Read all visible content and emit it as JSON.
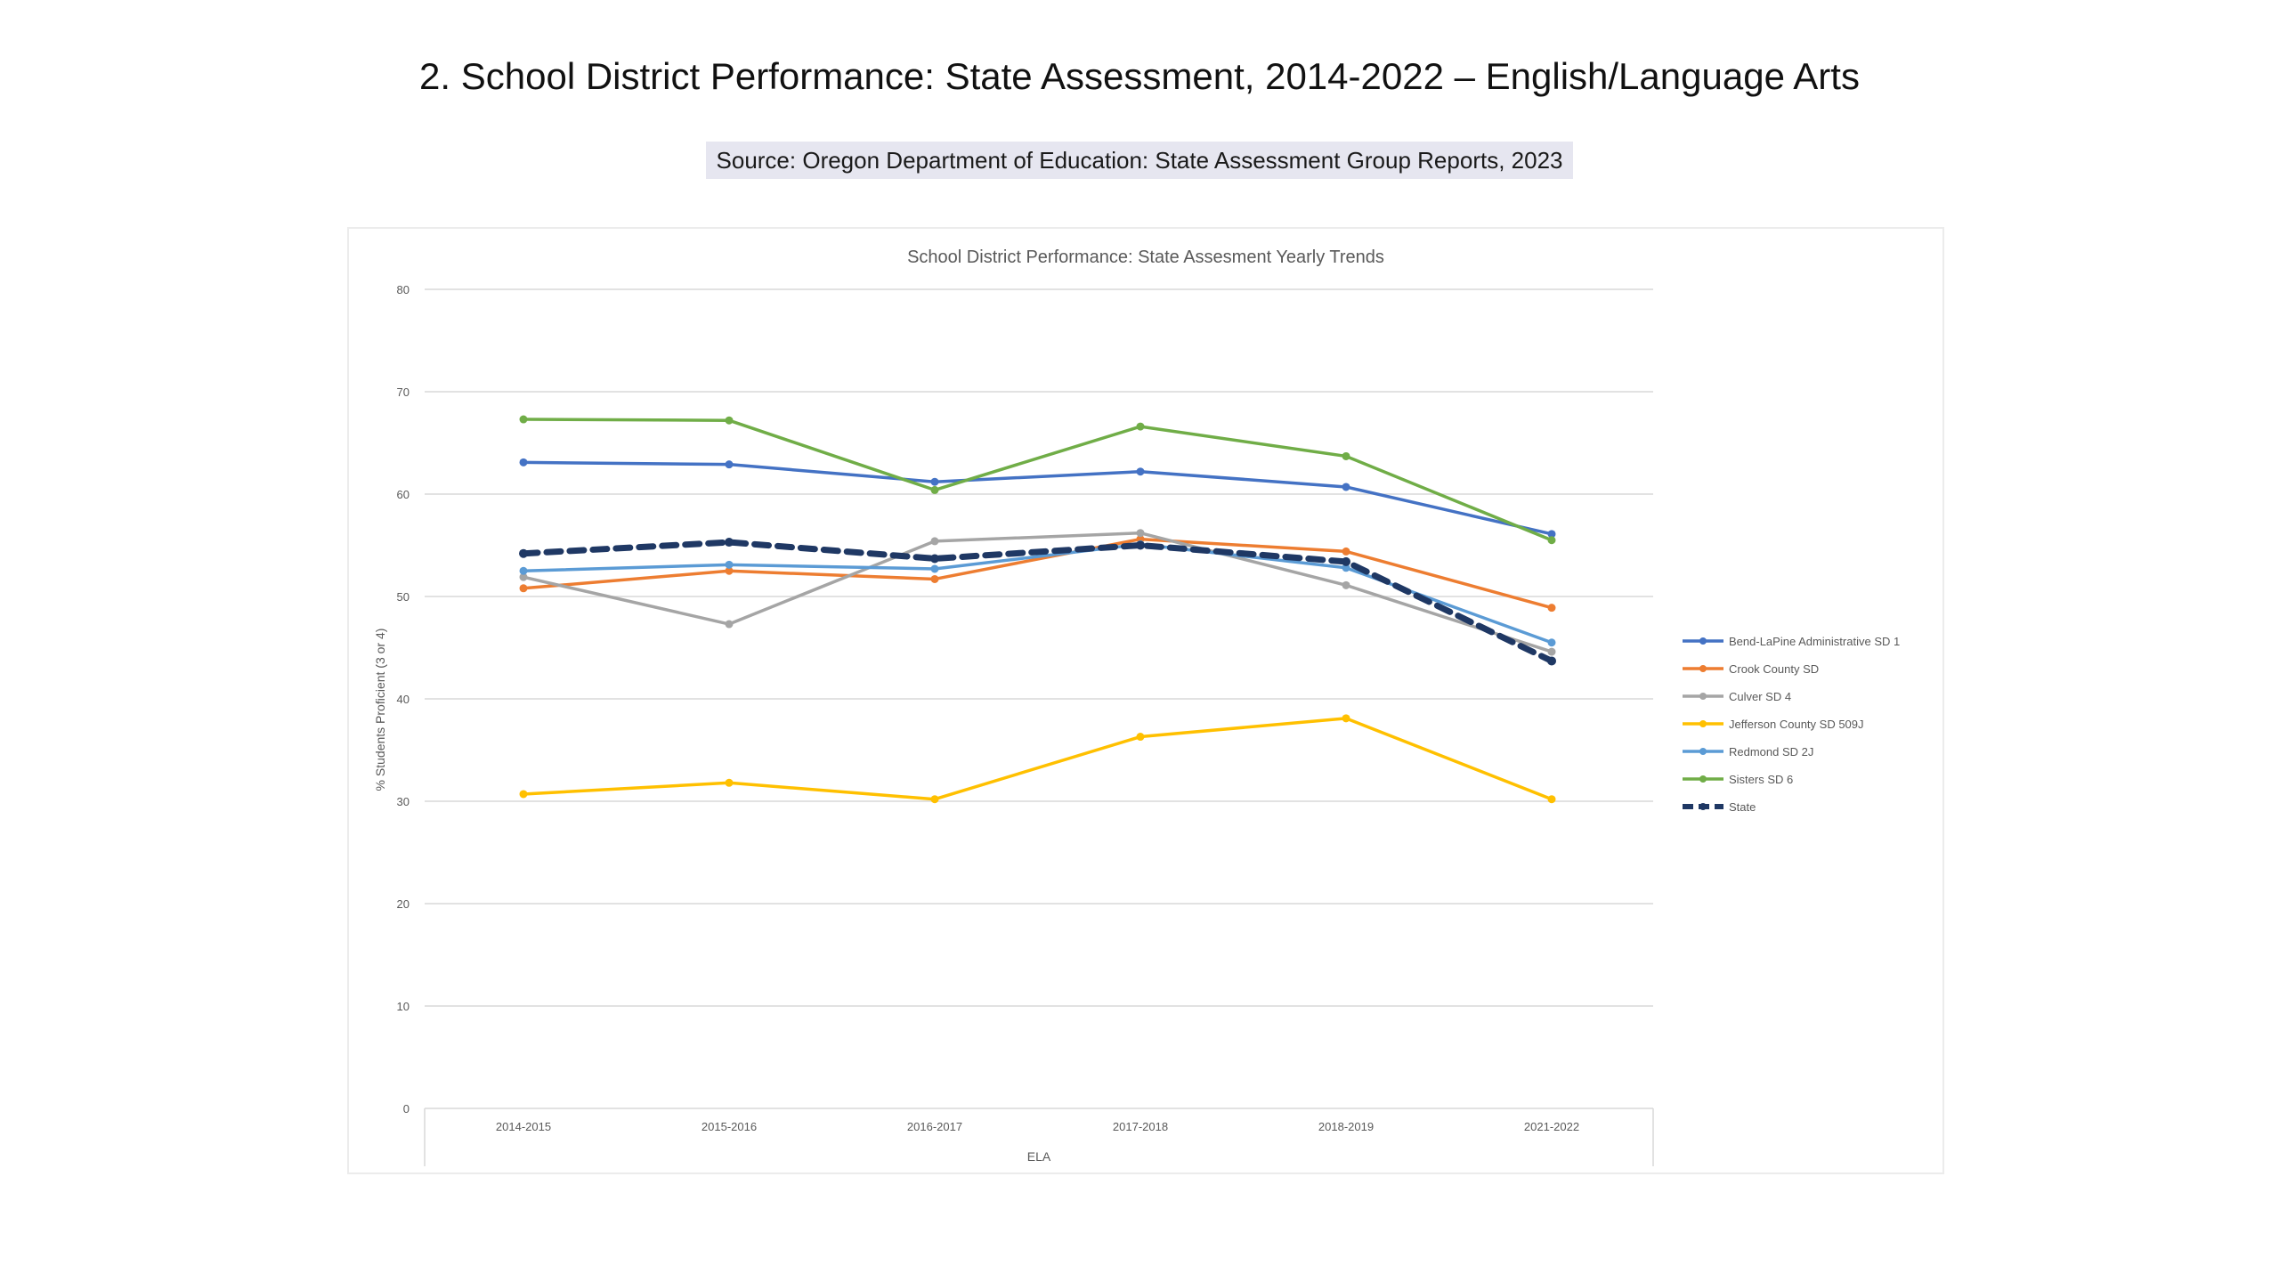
{
  "slide": {
    "title": "2. School District Performance: State Assessment, 2014-2022 – English/Language Arts",
    "source": "Source: Oregon Department of Education: State Assessment Group Reports, 2023"
  },
  "chart_data": {
    "type": "line",
    "title": "School District Performance: State Assesment Yearly Trends",
    "xlabel": "ELA",
    "ylabel": "% Students Proficient (3 or 4)",
    "ylim": [
      0,
      80
    ],
    "yticks": [
      0,
      10,
      20,
      30,
      40,
      50,
      60,
      70,
      80
    ],
    "grid": true,
    "legend_position": "right",
    "categories": [
      "2014-2015",
      "2015-2016",
      "2016-2017",
      "2017-2018",
      "2018-2019",
      "2021-2022"
    ],
    "series": [
      {
        "name": "Bend-LaPine Administrative SD 1",
        "color": "#4472c4",
        "dashed": false,
        "values": [
          63.1,
          62.9,
          61.2,
          62.2,
          60.7,
          56.1
        ]
      },
      {
        "name": "Crook County SD",
        "color": "#ed7d31",
        "dashed": false,
        "values": [
          50.8,
          52.5,
          51.7,
          55.6,
          54.4,
          48.9
        ]
      },
      {
        "name": "Culver SD 4",
        "color": "#a5a5a5",
        "dashed": false,
        "values": [
          51.9,
          47.3,
          55.4,
          56.2,
          51.1,
          44.6
        ]
      },
      {
        "name": "Jefferson County SD 509J",
        "color": "#ffc000",
        "dashed": false,
        "values": [
          30.7,
          31.8,
          30.2,
          36.3,
          38.1,
          30.2
        ]
      },
      {
        "name": "Redmond SD 2J",
        "color": "#5b9bd5",
        "dashed": false,
        "values": [
          52.5,
          53.1,
          52.7,
          55.1,
          52.8,
          45.5
        ]
      },
      {
        "name": "Sisters SD 6",
        "color": "#70ad47",
        "dashed": false,
        "values": [
          67.3,
          67.2,
          60.4,
          66.6,
          63.7,
          55.5
        ]
      },
      {
        "name": "State",
        "color": "#1f3864",
        "dashed": true,
        "values": [
          54.2,
          55.3,
          53.7,
          55.0,
          53.4,
          43.7
        ]
      }
    ]
  }
}
